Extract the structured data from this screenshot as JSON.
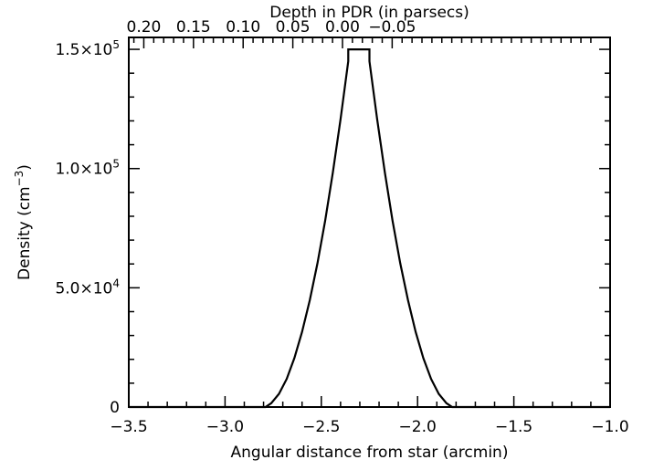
{
  "chart_data": {
    "type": "line",
    "title": "",
    "xlabel": "Angular distance from star (arcmin)",
    "top_xlabel": "Depth in PDR (in parsecs)",
    "ylabel_main": "Density (cm",
    "ylabel_exp": "−3",
    "ylabel_close": ")",
    "xlim": [
      -3.5,
      -1.0
    ],
    "ylim": [
      0,
      155000
    ],
    "x_ticks": [
      {
        "value": -3.5,
        "label": "−3.5"
      },
      {
        "value": -3.0,
        "label": "−3.0"
      },
      {
        "value": -2.5,
        "label": "−2.5"
      },
      {
        "value": -2.0,
        "label": "−2.0"
      },
      {
        "value": -1.5,
        "label": "−1.5"
      },
      {
        "value": -1.0,
        "label": "−1.0"
      }
    ],
    "top_ticks": [
      {
        "value": -3.422,
        "label": "0.20"
      },
      {
        "value": -3.164,
        "label": "0.15"
      },
      {
        "value": -2.906,
        "label": "0.10"
      },
      {
        "value": -2.648,
        "label": "0.05"
      },
      {
        "value": -2.39,
        "label": "0.00"
      },
      {
        "value": -2.132,
        "label": "−0.05"
      }
    ],
    "y_ticks": [
      {
        "value": 0,
        "label": "0",
        "mant": "",
        "exp": ""
      },
      {
        "value": 50000,
        "label": "",
        "mant": "5.0×10",
        "exp": "4"
      },
      {
        "value": 100000,
        "label": "",
        "mant": "1.0×10",
        "exp": "5"
      },
      {
        "value": 150000,
        "label": "",
        "mant": "1.5×10",
        "exp": "5"
      }
    ],
    "series": [
      {
        "x": [
          -3.5,
          -2.79,
          -2.76,
          -2.72,
          -2.68,
          -2.64,
          -2.6,
          -2.56,
          -2.52,
          -2.48,
          -2.44,
          -2.4,
          -2.36,
          -2.36,
          -2.25,
          -2.25,
          -2.21,
          -2.17,
          -2.13,
          -2.09,
          -2.05,
          -2.01,
          -1.97,
          -1.93,
          -1.89,
          -1.85,
          -1.82,
          -1.0
        ],
        "y": [
          0,
          0,
          1600,
          5500,
          11800,
          20500,
          31500,
          44800,
          60300,
          78100,
          98300,
          120800,
          145000,
          150000,
          150000,
          145000,
          120800,
          98300,
          78100,
          60300,
          44800,
          31500,
          20500,
          11800,
          5500,
          1600,
          0,
          0
        ]
      }
    ]
  }
}
